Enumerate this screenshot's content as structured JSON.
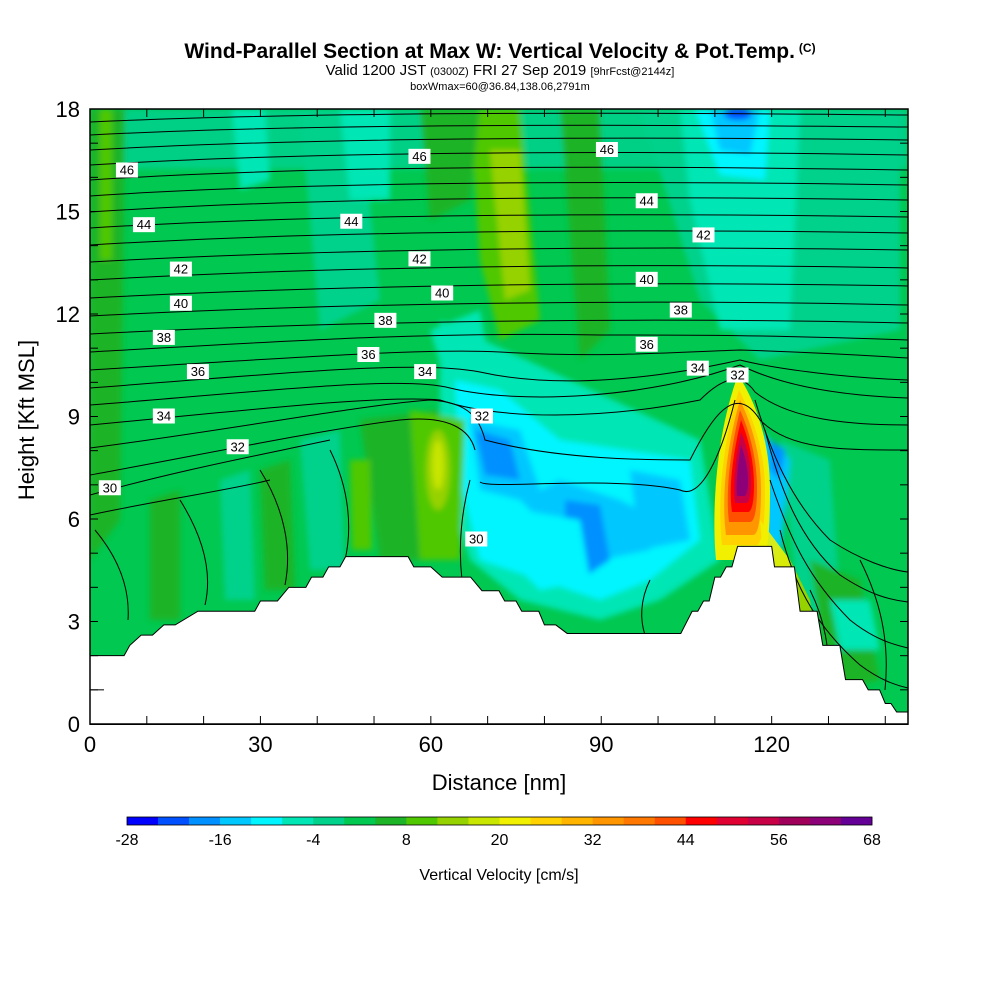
{
  "header": {
    "title": "Wind-Parallel Section at Max W: Vertical Velocity & Pot.Temp.",
    "copyright_mark": "(C)",
    "valid_prefix": "Valid 1200 JST",
    "valid_utc": "(0300Z)",
    "valid_date": "FRI 27 Sep 2019",
    "forecast_tag": "[9hrFcst@2144z]",
    "box_info": "boxWmax=60@36.84,138.06,2791m"
  },
  "chart_data": {
    "type": "contour-section",
    "xlabel": "Distance [nm]",
    "ylabel": "Height [Kft MSL]",
    "xlim": [
      0,
      144
    ],
    "ylim": [
      0,
      18
    ],
    "x_ticks": [
      0,
      30,
      60,
      90,
      120
    ],
    "y_ticks": [
      0,
      3,
      6,
      9,
      12,
      15,
      18
    ],
    "colorbar": {
      "label": "Vertical Velocity [cm/s]",
      "tick_labels": [
        -28,
        -16,
        -4,
        8,
        20,
        32,
        44,
        56,
        68
      ],
      "colors": [
        "#0000ff",
        "#0050ff",
        "#0090ff",
        "#00c8ff",
        "#00f5ff",
        "#00e6b4",
        "#00d28c",
        "#00c850",
        "#1eb428",
        "#50c800",
        "#96d200",
        "#c8e600",
        "#f0f000",
        "#ffd200",
        "#ffb400",
        "#ff9600",
        "#ff7800",
        "#ff5000",
        "#ff0000",
        "#e10032",
        "#c80046",
        "#a0005a",
        "#8c0078",
        "#640096"
      ],
      "range": [
        -28,
        68
      ]
    },
    "terrain_kft": [
      [
        0,
        2.0
      ],
      [
        6,
        2.0
      ],
      [
        7,
        2.3
      ],
      [
        9,
        2.6
      ],
      [
        10,
        2.6
      ],
      [
        11,
        2.6
      ],
      [
        13,
        2.9
      ],
      [
        15,
        2.9
      ],
      [
        19,
        3.3
      ],
      [
        29,
        3.3
      ],
      [
        30,
        3.6
      ],
      [
        33,
        3.6
      ],
      [
        35,
        4.0
      ],
      [
        38,
        4.0
      ],
      [
        39,
        4.3
      ],
      [
        41,
        4.3
      ],
      [
        42,
        4.6
      ],
      [
        44,
        4.6
      ],
      [
        45,
        4.9
      ],
      [
        56,
        4.9
      ],
      [
        57,
        4.6
      ],
      [
        60,
        4.6
      ],
      [
        62,
        4.3
      ],
      [
        67,
        4.3
      ],
      [
        69,
        3.9
      ],
      [
        72,
        3.9
      ],
      [
        73,
        3.6
      ],
      [
        75,
        3.6
      ],
      [
        76,
        3.3
      ],
      [
        79,
        3.3
      ],
      [
        80,
        2.9
      ],
      [
        82,
        2.9
      ],
      [
        84,
        2.65
      ],
      [
        104,
        2.65
      ],
      [
        106,
        3.3
      ],
      [
        107,
        3.3
      ],
      [
        108,
        3.6
      ],
      [
        109,
        3.6
      ],
      [
        110,
        4.3
      ],
      [
        111,
        4.3
      ],
      [
        112,
        4.6
      ],
      [
        113,
        4.6
      ],
      [
        114,
        5.2
      ],
      [
        120,
        5.2
      ],
      [
        120.5,
        4.6
      ],
      [
        124,
        4.6
      ],
      [
        125,
        3.3
      ],
      [
        128,
        3.3
      ],
      [
        129,
        2.3
      ],
      [
        132,
        2.3
      ],
      [
        133,
        1.3
      ],
      [
        136,
        1.3
      ],
      [
        137,
        1.0
      ],
      [
        139,
        1.0
      ],
      [
        140,
        0.6
      ],
      [
        141,
        0.6
      ],
      [
        142,
        0.35
      ],
      [
        144,
        0.35
      ]
    ],
    "theta_labels": [
      {
        "x": 6.5,
        "y": 16.2,
        "v": "46"
      },
      {
        "x": 58,
        "y": 16.6,
        "v": "46"
      },
      {
        "x": 91,
        "y": 16.8,
        "v": "46"
      },
      {
        "x": 9.5,
        "y": 14.6,
        "v": "44"
      },
      {
        "x": 46,
        "y": 14.7,
        "v": "44"
      },
      {
        "x": 98,
        "y": 15.3,
        "v": "44"
      },
      {
        "x": 16,
        "y": 13.3,
        "v": "42"
      },
      {
        "x": 58,
        "y": 13.6,
        "v": "42"
      },
      {
        "x": 108,
        "y": 14.3,
        "v": "42"
      },
      {
        "x": 16,
        "y": 12.3,
        "v": "40"
      },
      {
        "x": 62,
        "y": 12.6,
        "v": "40"
      },
      {
        "x": 98,
        "y": 13.0,
        "v": "40"
      },
      {
        "x": 13,
        "y": 11.3,
        "v": "38"
      },
      {
        "x": 52,
        "y": 11.8,
        "v": "38"
      },
      {
        "x": 104,
        "y": 12.1,
        "v": "38"
      },
      {
        "x": 19,
        "y": 10.3,
        "v": "36"
      },
      {
        "x": 49,
        "y": 10.8,
        "v": "36"
      },
      {
        "x": 98,
        "y": 11.1,
        "v": "36"
      },
      {
        "x": 59,
        "y": 10.3,
        "v": "34"
      },
      {
        "x": 13,
        "y": 9.0,
        "v": "34"
      },
      {
        "x": 107,
        "y": 10.4,
        "v": "34"
      },
      {
        "x": 69,
        "y": 9.0,
        "v": "32"
      },
      {
        "x": 26,
        "y": 8.1,
        "v": "32"
      },
      {
        "x": 114,
        "y": 10.2,
        "v": "32"
      },
      {
        "x": 3.5,
        "y": 6.9,
        "v": "30"
      },
      {
        "x": 68,
        "y": 5.4,
        "v": "30"
      }
    ]
  }
}
